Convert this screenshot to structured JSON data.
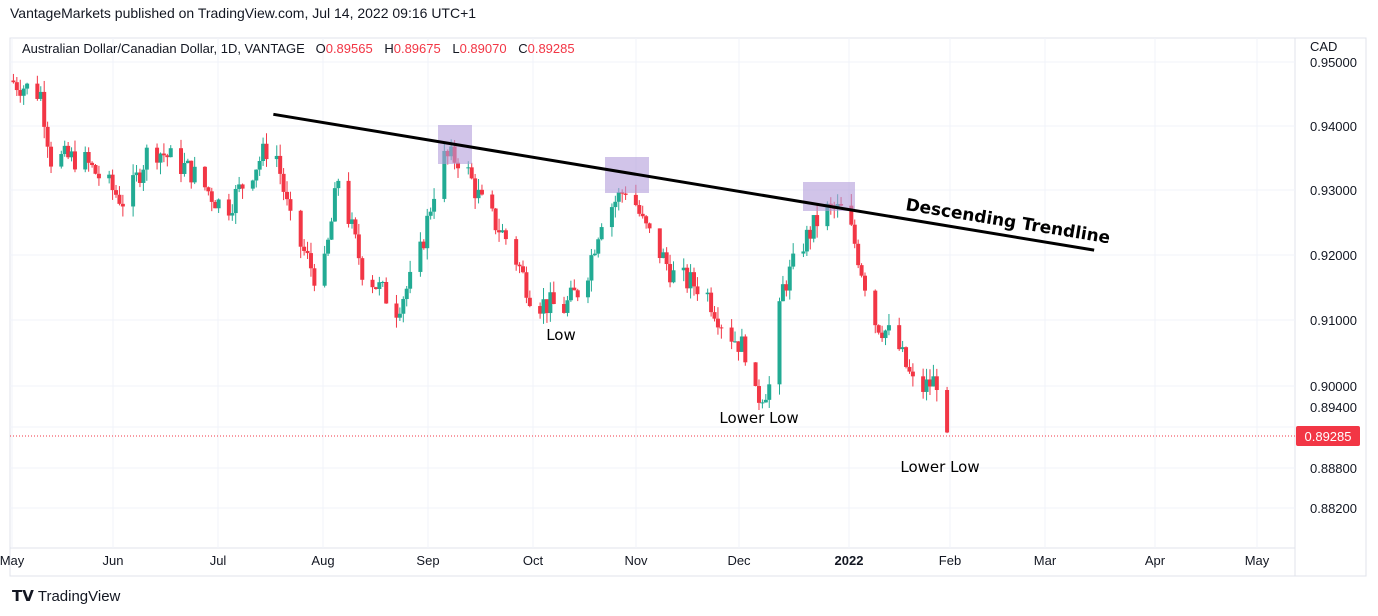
{
  "header": {
    "published": "VantageMarkets published on TradingView.com, Jul 14, 2022 09:16 UTC+1"
  },
  "legend": {
    "symbol": "Australian Dollar/Canadian Dollar, 1D, VANTAGE",
    "o_label": "O",
    "o": "0.89565",
    "h_label": "H",
    "h": "0.89675",
    "l_label": "L",
    "l": "0.89070",
    "c_label": "C",
    "c": "0.89285"
  },
  "footer": {
    "brand": "TradingView",
    "logo": "TV"
  },
  "colors": {
    "up": "#22ab94",
    "down": "#f23645",
    "line": "#000000",
    "box": "#b39ddb"
  },
  "chart_data": {
    "type": "candlestick",
    "currency": "CAD",
    "start_date": "2021-05-01",
    "last_price": "0.89285",
    "y_ticks": [
      "0.95000",
      "0.94000",
      "0.93000",
      "0.92000",
      "0.91000",
      "0.90000",
      "0.89400",
      "0.88800",
      "0.88200"
    ],
    "x_ticks": [
      "May",
      "Jun",
      "Jul",
      "Aug",
      "Sep",
      "Oct",
      "Nov",
      "Dec",
      "2022",
      "Feb",
      "Mar",
      "Apr",
      "May"
    ],
    "close_path": [
      [
        0,
        0.947
      ],
      [
        9,
        0.945
      ],
      [
        12,
        0.935
      ],
      [
        21,
        0.935
      ],
      [
        34,
        0.928
      ],
      [
        41,
        0.937
      ],
      [
        53,
        0.933
      ],
      [
        63,
        0.927
      ],
      [
        77,
        0.938
      ],
      [
        82,
        0.925
      ],
      [
        91,
        0.915
      ],
      [
        96,
        0.932
      ],
      [
        103,
        0.918
      ],
      [
        113,
        0.912
      ],
      [
        119,
        0.918
      ],
      [
        126,
        0.935
      ],
      [
        132,
        0.935
      ],
      [
        138,
        0.928
      ],
      [
        146,
        0.922
      ],
      [
        153,
        0.913
      ],
      [
        162,
        0.912
      ],
      [
        168,
        0.916
      ],
      [
        173,
        0.926
      ],
      [
        181,
        0.931
      ],
      [
        185,
        0.925
      ],
      [
        194,
        0.917
      ],
      [
        203,
        0.915
      ],
      [
        209,
        0.909
      ],
      [
        216,
        0.905
      ],
      [
        218,
        0.898
      ],
      [
        222,
        0.9
      ],
      [
        226,
        0.915
      ],
      [
        232,
        0.922
      ],
      [
        238,
        0.927
      ],
      [
        244,
        0.927
      ],
      [
        247,
        0.922
      ],
      [
        253,
        0.91
      ],
      [
        259,
        0.907
      ],
      [
        265,
        0.899
      ],
      [
        271,
        0.901
      ],
      [
        274,
        0.8928
      ]
    ],
    "annotations": {
      "trendline": {
        "label": "Descending Trendline",
        "from": [
          77,
          0.9418
        ],
        "to": [
          317,
          0.9209
        ]
      },
      "labels": [
        "Low",
        "Lower Low",
        "Lower Low"
      ]
    }
  }
}
